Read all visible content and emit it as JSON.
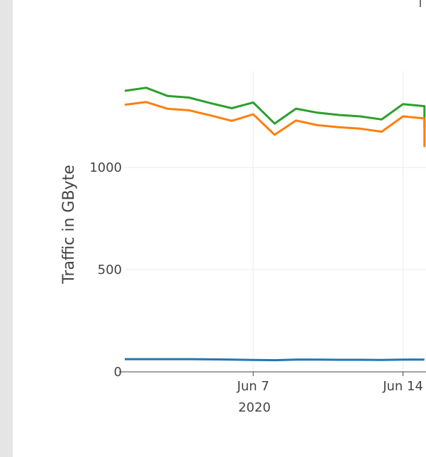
{
  "chart_data": {
    "type": "line",
    "title": "",
    "ylabel": "Traffic in GByte",
    "xlabel": "",
    "ylim": [
      0,
      1450
    ],
    "yticks": [
      {
        "value": 0,
        "label": "0"
      },
      {
        "value": 500,
        "label": "500"
      },
      {
        "value": 1000,
        "label": "1000"
      }
    ],
    "xticks": [
      {
        "date": "2020-06-07",
        "label": "Jun 7"
      },
      {
        "date": "2020-06-14",
        "label": "Jun 14"
      }
    ],
    "x_year_label": "2020",
    "grid": true,
    "x": [
      "2020-06-01",
      "2020-06-02",
      "2020-06-03",
      "2020-06-04",
      "2020-06-05",
      "2020-06-06",
      "2020-06-07",
      "2020-06-08",
      "2020-06-09",
      "2020-06-10",
      "2020-06-11",
      "2020-06-12",
      "2020-06-13",
      "2020-06-14",
      "2020-06-15"
    ],
    "series": [
      {
        "color": "#2ca02c",
        "values": [
          1375,
          1390,
          1350,
          1342,
          1315,
          1290,
          1318,
          1215,
          1288,
          1268,
          1257,
          1250,
          1235,
          1310,
          1300
        ]
      },
      {
        "color": "#ff7f0e",
        "values": [
          1307,
          1320,
          1287,
          1280,
          1255,
          1228,
          1260,
          1160,
          1230,
          1207,
          1197,
          1190,
          1175,
          1250,
          1240
        ]
      },
      {
        "color": "#1f77b4",
        "values": [
          62,
          62,
          62,
          62,
          61,
          60,
          58,
          57,
          60,
          60,
          59,
          59,
          58,
          60,
          60
        ]
      }
    ],
    "truncated_drop": {
      "date": "2020-06-15",
      "values": [
        1195,
        1100
      ]
    }
  }
}
